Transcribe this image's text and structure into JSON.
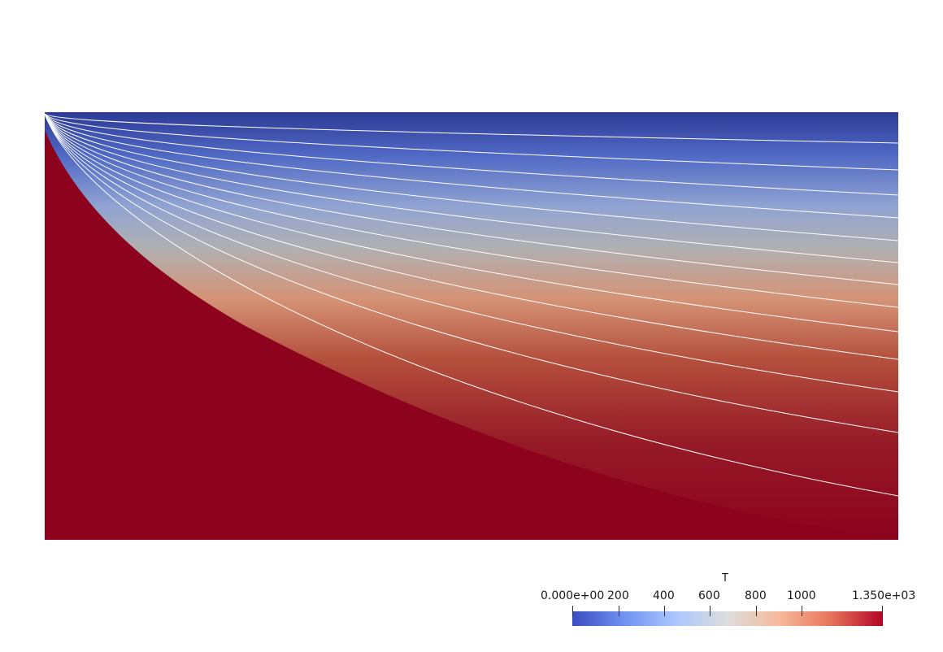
{
  "scalar_field": {
    "name": "T",
    "range": [
      0,
      1350
    ],
    "colormap": "Cool to Warm",
    "colormap_stops": [
      "#3b4cc0",
      "#6f92f3",
      "#aac7fd",
      "#dddddd",
      "#f7b89c",
      "#e7745b",
      "#b40426"
    ],
    "domain_colors": {
      "cold": "#2c3c9a",
      "mid": "#a8acb4",
      "hot": "#8d031e"
    },
    "isoline_color": "#ffffff"
  },
  "colorbar": {
    "title": "T",
    "min_label": "0.000e+00",
    "max_label": "1.350e+03",
    "tick_labels": [
      "200",
      "400",
      "600",
      "800",
      "1000"
    ]
  }
}
